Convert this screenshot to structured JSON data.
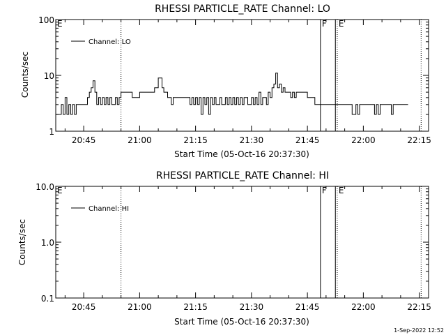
{
  "footer": {
    "timestamp": "1-Sep-2022 12:52"
  },
  "chart_data": [
    {
      "type": "line",
      "title": "RHESSI PARTICLE_RATE Channel: LO",
      "xlabel": "Start Time (05-Oct-16 20:37:30)",
      "ylabel": "Counts/sec",
      "yscale": "log",
      "xlim": [
        "20:37:30",
        "22:17:30"
      ],
      "ylim": [
        1,
        100
      ],
      "x_ticks": [
        "20:45",
        "21:00",
        "21:15",
        "21:30",
        "21:45",
        "22:00",
        "22:15"
      ],
      "y_ticks": [
        "1",
        "10",
        "100"
      ],
      "legend": {
        "position": "top-left",
        "entries": [
          "Channel: LO"
        ]
      },
      "series": [
        {
          "name": "Channel: LO",
          "x": [
            "20:37:30",
            "20:38:30",
            "20:39:00",
            "20:39:30",
            "20:40:00",
            "20:40:30",
            "20:41:00",
            "20:41:30",
            "20:42:00",
            "20:42:30",
            "20:43:00",
            "20:44:00",
            "20:45:00",
            "20:46:00",
            "20:46:30",
            "20:47:00",
            "20:47:30",
            "20:48:00",
            "20:48:30",
            "20:49:00",
            "20:49:30",
            "20:50:00",
            "20:50:30",
            "20:51:00",
            "20:51:30",
            "20:52:00",
            "20:52:30",
            "20:53:00",
            "20:53:30",
            "20:54:00",
            "20:54:30",
            "20:55:00",
            "20:56:00",
            "20:57:00",
            "20:58:00",
            "20:59:00",
            "21:00:00",
            "21:01:00",
            "21:02:00",
            "21:03:00",
            "21:04:00",
            "21:05:00",
            "21:06:00",
            "21:06:30",
            "21:07:00",
            "21:07:30",
            "21:08:00",
            "21:08:30",
            "21:09:00",
            "21:10:00",
            "21:11:00",
            "21:12:00",
            "21:13:00",
            "21:13:30",
            "21:14:00",
            "21:14:30",
            "21:15:00",
            "21:15:30",
            "21:16:00",
            "21:16:30",
            "21:17:00",
            "21:17:30",
            "21:18:00",
            "21:18:30",
            "21:19:00",
            "21:19:30",
            "21:20:00",
            "21:20:30",
            "21:21:00",
            "21:21:30",
            "21:22:00",
            "21:22:30",
            "21:23:00",
            "21:23:30",
            "21:24:00",
            "21:24:30",
            "21:25:00",
            "21:25:30",
            "21:26:00",
            "21:26:30",
            "21:27:00",
            "21:27:30",
            "21:28:00",
            "21:29:00",
            "21:30:00",
            "21:30:30",
            "21:31:00",
            "21:31:30",
            "21:32:00",
            "21:32:30",
            "21:33:00",
            "21:34:00",
            "21:34:30",
            "21:35:00",
            "21:35:30",
            "21:36:00",
            "21:36:30",
            "21:37:00",
            "21:37:30",
            "21:38:00",
            "21:38:30",
            "21:39:00",
            "21:40:00",
            "21:40:30",
            "21:41:00",
            "21:41:30",
            "21:42:00",
            "21:43:00",
            "21:44:00",
            "21:45:00",
            "21:46:00",
            "21:46:30",
            "21:47:00",
            "21:48:00",
            "21:49:00",
            "21:50:00",
            "21:51:00",
            "21:52:00",
            "21:53:00",
            "21:54:00",
            "21:55:00",
            "21:56:00",
            "21:57:00",
            "21:58:00",
            "21:58:30",
            "21:59:00",
            "21:59:30",
            "22:00:00",
            "22:00:30",
            "22:01:00",
            "22:02:00",
            "22:03:00",
            "22:03:30",
            "22:04:00",
            "22:04:30",
            "22:05:00",
            "22:06:00",
            "22:07:00",
            "22:07:30",
            "22:08:00",
            "22:09:00",
            "22:10:00",
            "22:11:00",
            "22:12:00"
          ],
          "values": [
            2,
            2,
            3,
            2,
            4,
            2,
            3,
            2,
            3,
            2,
            3,
            3,
            3,
            4,
            5,
            6,
            8,
            5,
            3,
            4,
            3,
            4,
            3,
            4,
            3,
            4,
            3,
            3,
            4,
            3,
            4,
            5,
            5,
            5,
            4,
            4,
            5,
            5,
            5,
            5,
            6,
            9,
            6,
            5,
            5,
            4,
            4,
            3,
            4,
            4,
            4,
            4,
            4,
            3,
            4,
            3,
            4,
            3,
            4,
            2,
            4,
            3,
            4,
            2,
            4,
            3,
            4,
            3,
            3,
            4,
            3,
            3,
            4,
            3,
            4,
            3,
            4,
            3,
            4,
            3,
            4,
            3,
            4,
            3,
            4,
            3,
            4,
            3,
            5,
            3,
            4,
            3,
            5,
            4,
            6,
            7,
            11,
            6,
            7,
            5,
            6,
            5,
            5,
            4,
            5,
            4,
            5,
            5,
            5,
            4,
            4,
            4,
            3,
            3,
            3,
            3,
            3,
            3,
            3,
            3,
            3,
            3,
            2,
            3,
            2,
            3,
            3,
            3,
            3,
            3,
            3,
            2,
            3,
            2,
            3,
            3,
            3,
            3,
            2,
            3,
            3,
            3,
            3,
            3
          ]
        }
      ],
      "markers": [
        {
          "label": "E",
          "time": "20:37:30",
          "style": "none"
        },
        {
          "label": "",
          "time": "20:55:00",
          "style": "dotted"
        },
        {
          "label": "F",
          "time": "21:48:30",
          "style": "solid"
        },
        {
          "label": "",
          "time": "21:52:30",
          "style": "solid"
        },
        {
          "label": "E",
          "time": "21:53:00",
          "style": "dotted"
        },
        {
          "label": "",
          "time": "22:15:30",
          "style": "dotted"
        }
      ]
    },
    {
      "type": "line",
      "title": "RHESSI PARTICLE_RATE Channel: HI",
      "xlabel": "Start Time (05-Oct-16 20:37:30)",
      "ylabel": "Counts/sec",
      "yscale": "log",
      "xlim": [
        "20:37:30",
        "22:17:30"
      ],
      "ylim": [
        0.1,
        10
      ],
      "x_ticks": [
        "20:45",
        "21:00",
        "21:15",
        "21:30",
        "21:45",
        "22:00",
        "22:15"
      ],
      "y_ticks": [
        "0.1",
        "1.0",
        "10.0"
      ],
      "legend": {
        "position": "top-left",
        "entries": [
          "Channel: HI"
        ]
      },
      "series": [
        {
          "name": "Channel: HI",
          "x": [],
          "values": []
        }
      ],
      "markers": [
        {
          "label": "E",
          "time": "20:37:30",
          "style": "none"
        },
        {
          "label": "",
          "time": "20:55:00",
          "style": "dotted"
        },
        {
          "label": "F",
          "time": "21:48:30",
          "style": "solid"
        },
        {
          "label": "",
          "time": "21:52:30",
          "style": "solid"
        },
        {
          "label": "E",
          "time": "21:53:00",
          "style": "dotted"
        },
        {
          "label": "",
          "time": "22:15:30",
          "style": "dotted"
        }
      ]
    }
  ]
}
